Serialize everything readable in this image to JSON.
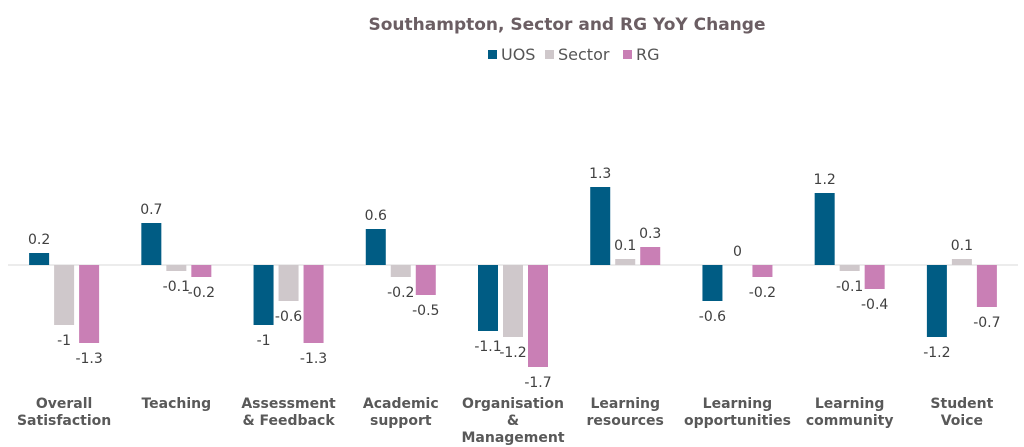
{
  "chart_data": {
    "type": "bar",
    "title": "Southampton, Sector and RG YoY Change",
    "categories": [
      [
        "Overall",
        "Satisfaction"
      ],
      [
        "Teaching"
      ],
      [
        "Assessment",
        "& Feedback"
      ],
      [
        "Academic",
        "support"
      ],
      [
        "Organisation",
        "&",
        "Management"
      ],
      [
        "Learning",
        "resources"
      ],
      [
        "Learning",
        "opportunities"
      ],
      [
        "Learning",
        "community"
      ],
      [
        "Student",
        "Voice"
      ]
    ],
    "series": [
      {
        "name": "UOS",
        "color": "#005c84",
        "values": [
          0.2,
          0.7,
          -1,
          0.6,
          -1.1,
          1.3,
          -0.6,
          1.2,
          -1.2
        ]
      },
      {
        "name": "Sector",
        "color": "#cfc8cb",
        "values": [
          -1,
          -0.1,
          -0.6,
          -0.2,
          -1.2,
          0.1,
          0,
          -0.1,
          0.1
        ]
      },
      {
        "name": "RG",
        "color": "#c97fb5",
        "values": [
          -1.3,
          -0.2,
          -1.3,
          -0.5,
          -1.7,
          0.3,
          -0.2,
          -0.4,
          -0.7
        ]
      }
    ],
    "ylim": [
      -2.0,
      2.0
    ],
    "legend_position": "top-center",
    "grid": false,
    "xlabel": "",
    "ylabel": ""
  }
}
